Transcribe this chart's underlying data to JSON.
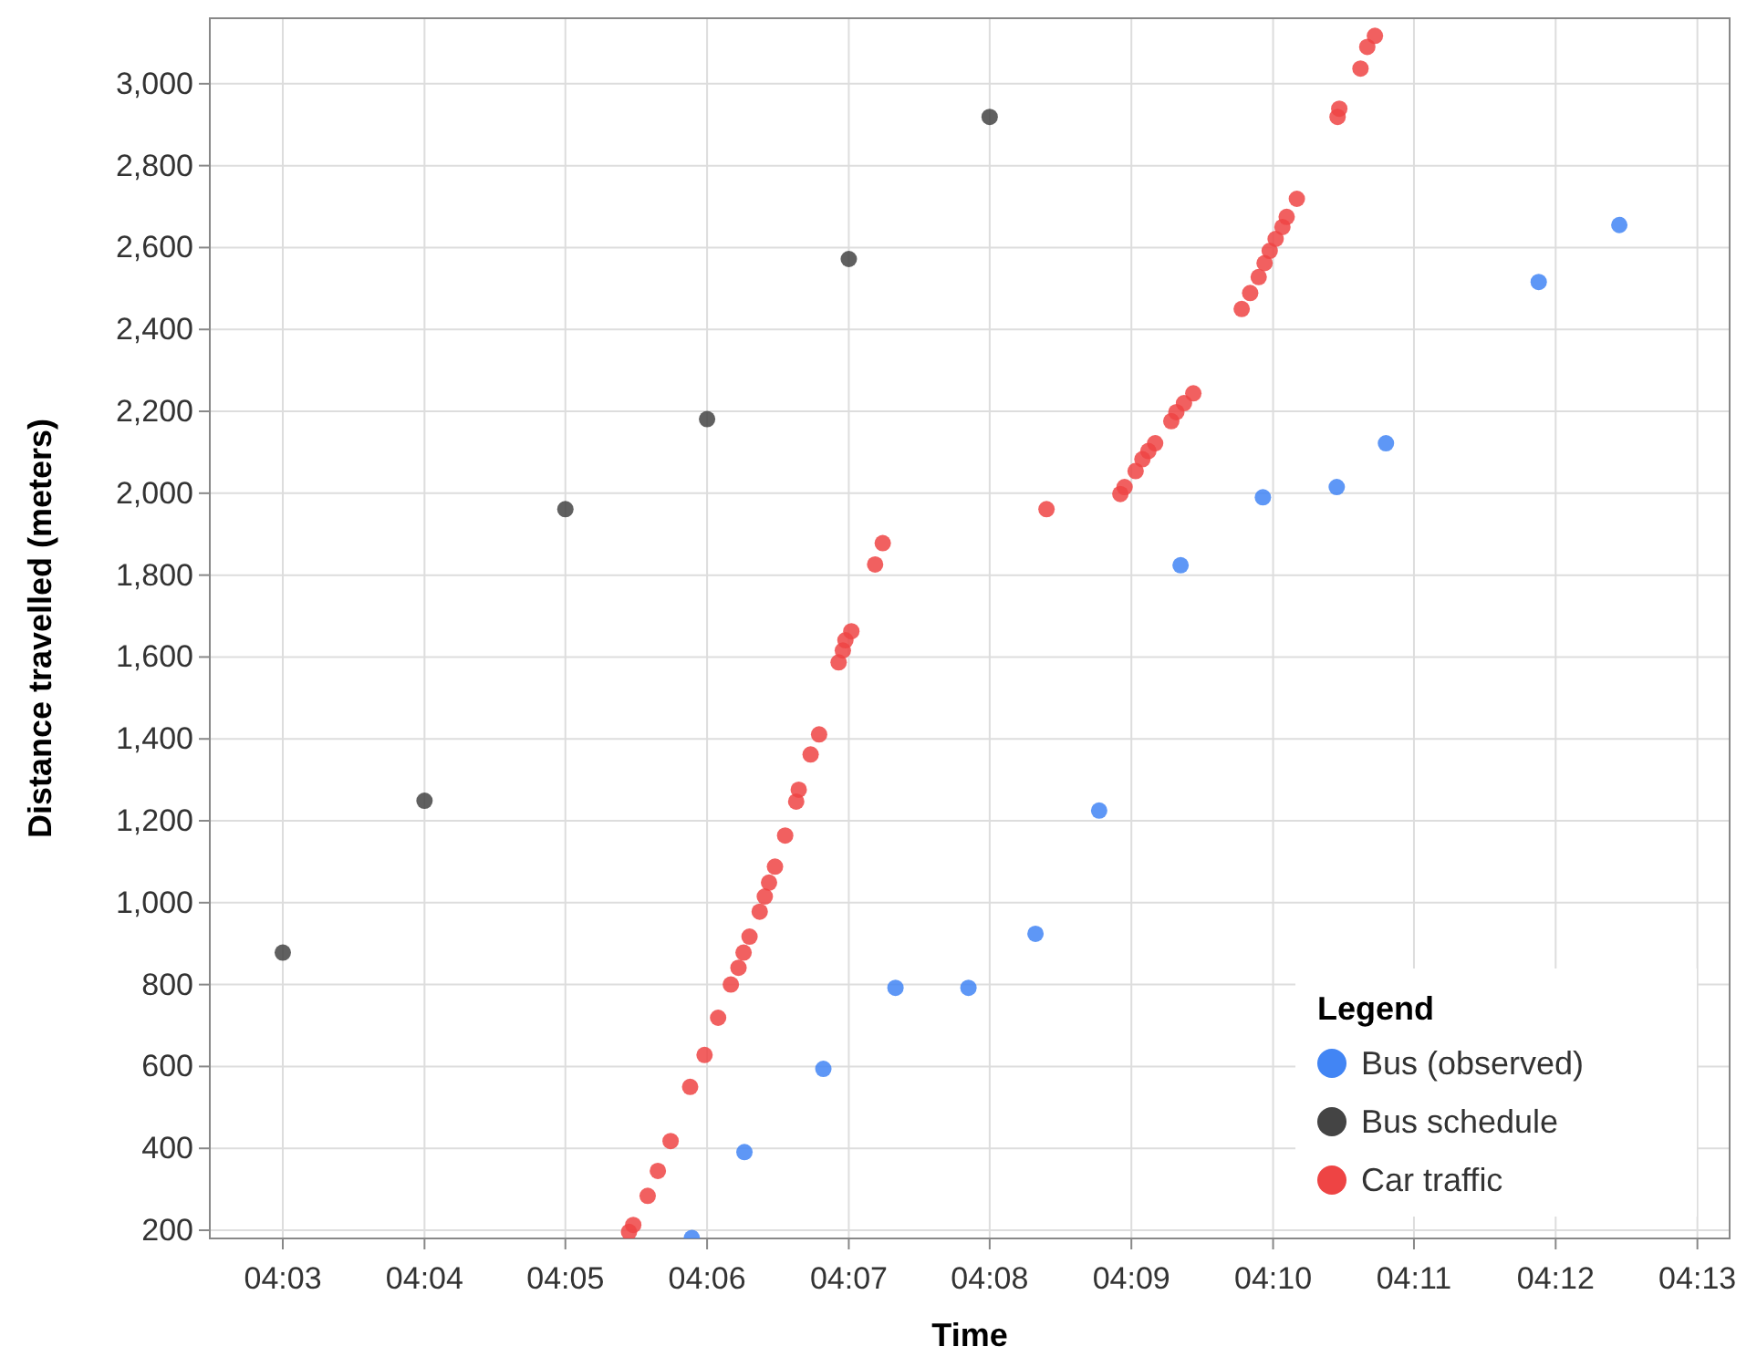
{
  "chart_data": {
    "type": "scatter",
    "xlabel": "Time",
    "ylabel": "Distance travelled (meters)",
    "legend_title": "Legend",
    "legend": "bottom right",
    "grid": true,
    "marker": "circle",
    "xlim": [
      4.0414,
      4.2205
    ],
    "xticks": [
      {
        "value": 4.05,
        "label": "04:03"
      },
      {
        "value": 4.0667,
        "label": "04:04"
      },
      {
        "value": 4.0833,
        "label": "04:05"
      },
      {
        "value": 4.1,
        "label": "04:06"
      },
      {
        "value": 4.1167,
        "label": "04:07"
      },
      {
        "value": 4.1333,
        "label": "04:08"
      },
      {
        "value": 4.15,
        "label": "04:09"
      },
      {
        "value": 4.1667,
        "label": "04:10"
      },
      {
        "value": 4.1833,
        "label": "04:11"
      },
      {
        "value": 4.2,
        "label": "04:12"
      },
      {
        "value": 4.2167,
        "label": "04:13"
      }
    ],
    "ylim": [
      180,
      3160
    ],
    "yticks": [
      200,
      400,
      600,
      800,
      {
        "value": 1000,
        "label": "1,000"
      },
      {
        "value": 1200,
        "label": "1,200"
      },
      {
        "value": 1400,
        "label": "1,400"
      },
      {
        "value": 1600,
        "label": "1,600"
      },
      {
        "value": 1800,
        "label": "1,800"
      },
      {
        "value": 2000,
        "label": "2,000"
      },
      {
        "value": 2200,
        "label": "2,200"
      },
      {
        "value": 2400,
        "label": "2,400"
      },
      {
        "value": 2600,
        "label": "2,600"
      },
      {
        "value": 2800,
        "label": "2,800"
      },
      {
        "value": 3000,
        "label": "3,000"
      }
    ],
    "series": [
      {
        "name": "Bus (observed)",
        "color": "#4285f4",
        "x": [
          4.0982,
          4.1044,
          4.1137,
          4.1222,
          4.1308,
          4.1387,
          4.1462,
          4.1558,
          4.1655,
          4.1742,
          4.18,
          4.198,
          4.2075
        ],
        "values": [
          181,
          391,
          594,
          792,
          792,
          924,
          1225,
          1824,
          1990,
          2015,
          2122,
          2516,
          2655
        ]
      },
      {
        "name": "Bus schedule",
        "color": "#444444",
        "x": [
          4.05,
          4.0667,
          4.0833,
          4.1,
          4.1167,
          4.1333
        ],
        "values": [
          878,
          1249,
          1961,
          2181,
          2572,
          2919
        ]
      },
      {
        "name": "Car traffic",
        "color": "#ee4444",
        "x": [
          4.0908,
          4.0913,
          4.093,
          4.0942,
          4.0957,
          4.098,
          4.0997,
          4.1013,
          4.1028,
          4.1037,
          4.1043,
          4.105,
          4.1062,
          4.1068,
          4.1073,
          4.108,
          4.1092,
          4.1105,
          4.1108,
          4.1122,
          4.1132,
          4.1155,
          4.116,
          4.1163,
          4.117,
          4.1198,
          4.1207,
          4.14,
          4.1487,
          4.1492,
          4.1505,
          4.1513,
          4.152,
          4.1528,
          4.1547,
          4.1553,
          4.1562,
          4.1573,
          4.163,
          4.164,
          4.165,
          4.1657,
          4.1663,
          4.167,
          4.1678,
          4.1683,
          4.1695,
          4.1743,
          4.1745,
          4.177,
          4.1778,
          4.1787
        ],
        "values": [
          196,
          213,
          284,
          345,
          418,
          550,
          628,
          719,
          800,
          841,
          878,
          917,
          978,
          1015,
          1049,
          1088,
          1164,
          1247,
          1276,
          1362,
          1411,
          1587,
          1616,
          1641,
          1663,
          1826,
          1878,
          1961,
          1998,
          2015,
          2054,
          2083,
          2103,
          2122,
          2176,
          2198,
          2220,
          2244,
          2450,
          2489,
          2528,
          2562,
          2592,
          2621,
          2650,
          2675,
          2719,
          2919,
          2939,
          3037,
          3090,
          3117
        ]
      }
    ]
  }
}
